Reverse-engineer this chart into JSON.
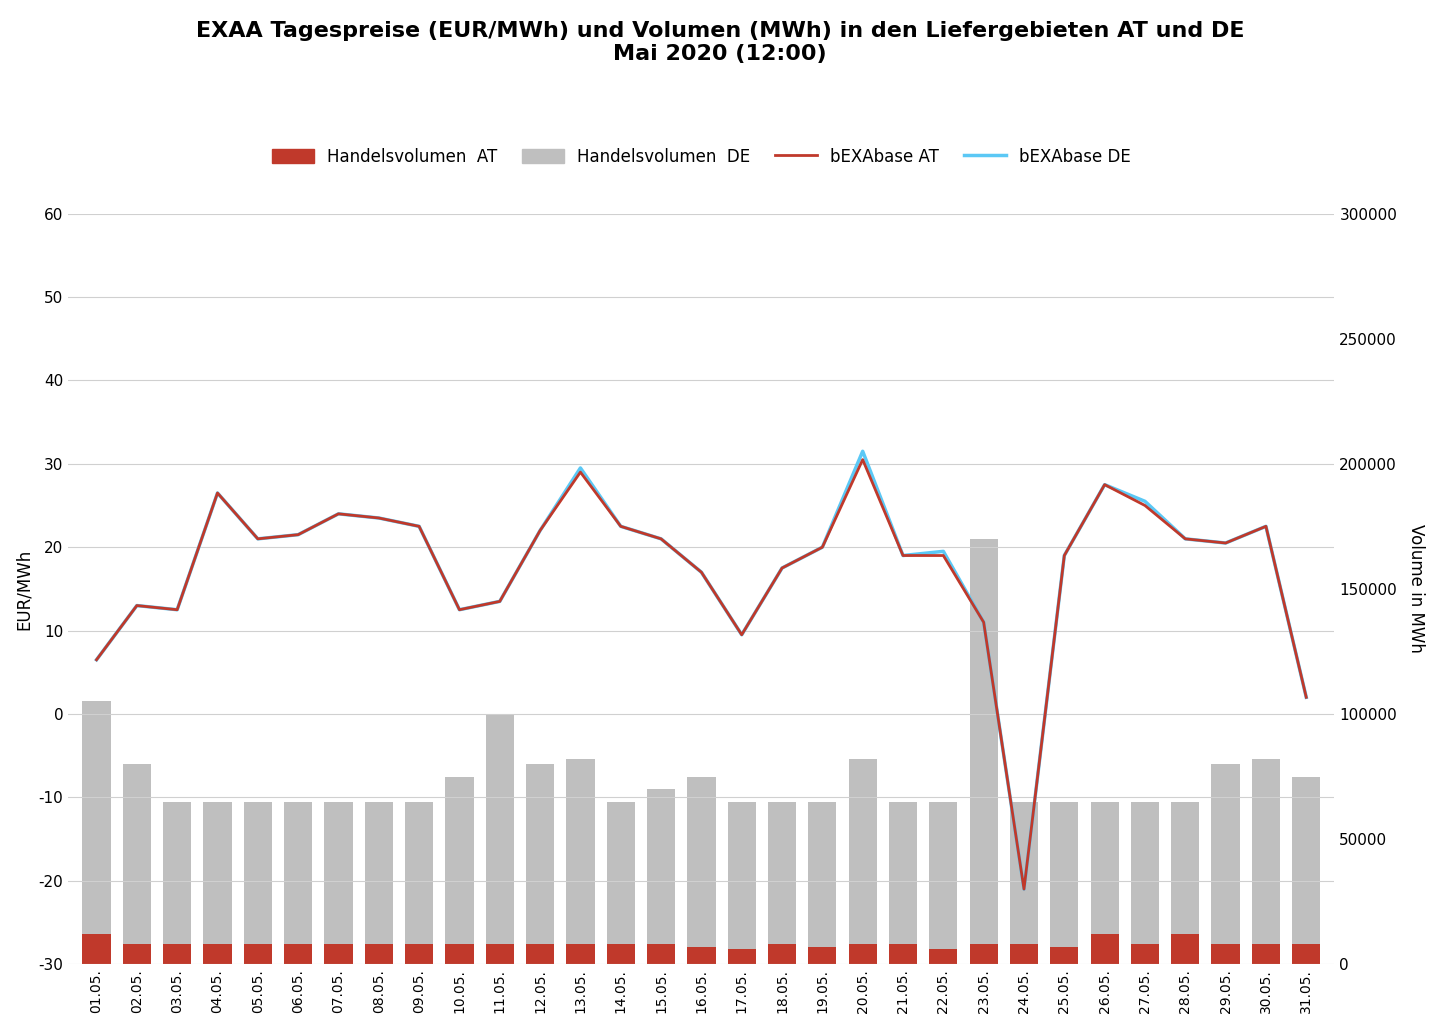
{
  "title": "EXAA Tagespreise (EUR/MWh) und Volumen (MWh) in den Liefergebieten AT und DE\nMai 2020 (12:00)",
  "ylabel_left": "EUR/MWh",
  "ylabel_right": "Volume in MWh",
  "dates": [
    "01.05.",
    "02.05.",
    "03.05.",
    "04.05.",
    "05.05.",
    "06.05.",
    "07.05.",
    "08.05.",
    "09.05.",
    "10.05.",
    "11.05.",
    "12.05.",
    "13.05.",
    "14.05.",
    "15.05.",
    "16.05.",
    "17.05.",
    "18.05.",
    "19.05.",
    "20.05.",
    "21.05.",
    "22.05.",
    "23.05.",
    "24.05.",
    "25.05.",
    "26.05.",
    "27.05.",
    "28.05.",
    "29.05.",
    "30.05.",
    "31.05."
  ],
  "bEXAbase_AT": [
    6.5,
    13.0,
    12.5,
    26.5,
    21.0,
    21.5,
    24.0,
    23.5,
    22.5,
    12.5,
    13.5,
    22.0,
    29.0,
    22.5,
    21.0,
    17.0,
    9.5,
    17.5,
    20.0,
    30.5,
    19.0,
    19.0,
    11.0,
    -21.0,
    19.0,
    27.5,
    25.0,
    21.0,
    20.5,
    22.5,
    2.0
  ],
  "bEXAbase_DE": [
    6.5,
    13.0,
    12.5,
    26.5,
    21.0,
    21.5,
    24.0,
    23.5,
    22.5,
    12.5,
    13.5,
    22.0,
    29.5,
    22.5,
    21.0,
    17.0,
    9.5,
    17.5,
    20.0,
    31.5,
    19.0,
    19.5,
    11.0,
    -21.0,
    19.0,
    27.5,
    25.5,
    21.0,
    20.5,
    22.5,
    2.0
  ],
  "vol_DE": [
    105000,
    80000,
    65000,
    65000,
    65000,
    65000,
    65000,
    65000,
    65000,
    75000,
    100000,
    80000,
    82000,
    65000,
    70000,
    75000,
    65000,
    65000,
    65000,
    82000,
    65000,
    65000,
    170000,
    65000,
    65000,
    65000,
    65000,
    65000,
    80000,
    82000,
    75000
  ],
  "vol_AT": [
    12000,
    8000,
    8000,
    8000,
    8000,
    8000,
    8000,
    8000,
    8000,
    8000,
    8000,
    8000,
    8000,
    8000,
    8000,
    7000,
    6000,
    8000,
    7000,
    8000,
    8000,
    6000,
    8000,
    8000,
    7000,
    12000,
    8000,
    12000,
    8000,
    8000,
    8000
  ],
  "color_AT_bar": "#C0392B",
  "color_DE_bar": "#BFBFBF",
  "color_AT_line": "#C0392B",
  "color_DE_line": "#5BC8F5",
  "ylim_left": [
    -30,
    60
  ],
  "ylim_right": [
    0,
    300000
  ],
  "yticks_left": [
    -30,
    -20,
    -10,
    0,
    10,
    20,
    30,
    40,
    50,
    60
  ],
  "yticks_right": [
    0,
    50000,
    100000,
    150000,
    200000,
    250000,
    300000
  ],
  "background_color": "#FFFFFF",
  "grid_color": "#D0D0D0",
  "legend_labels": [
    "Handelsvolumen  AT",
    "Handelsvolumen  DE",
    "bEXAbase AT",
    "bEXAbase DE"
  ]
}
